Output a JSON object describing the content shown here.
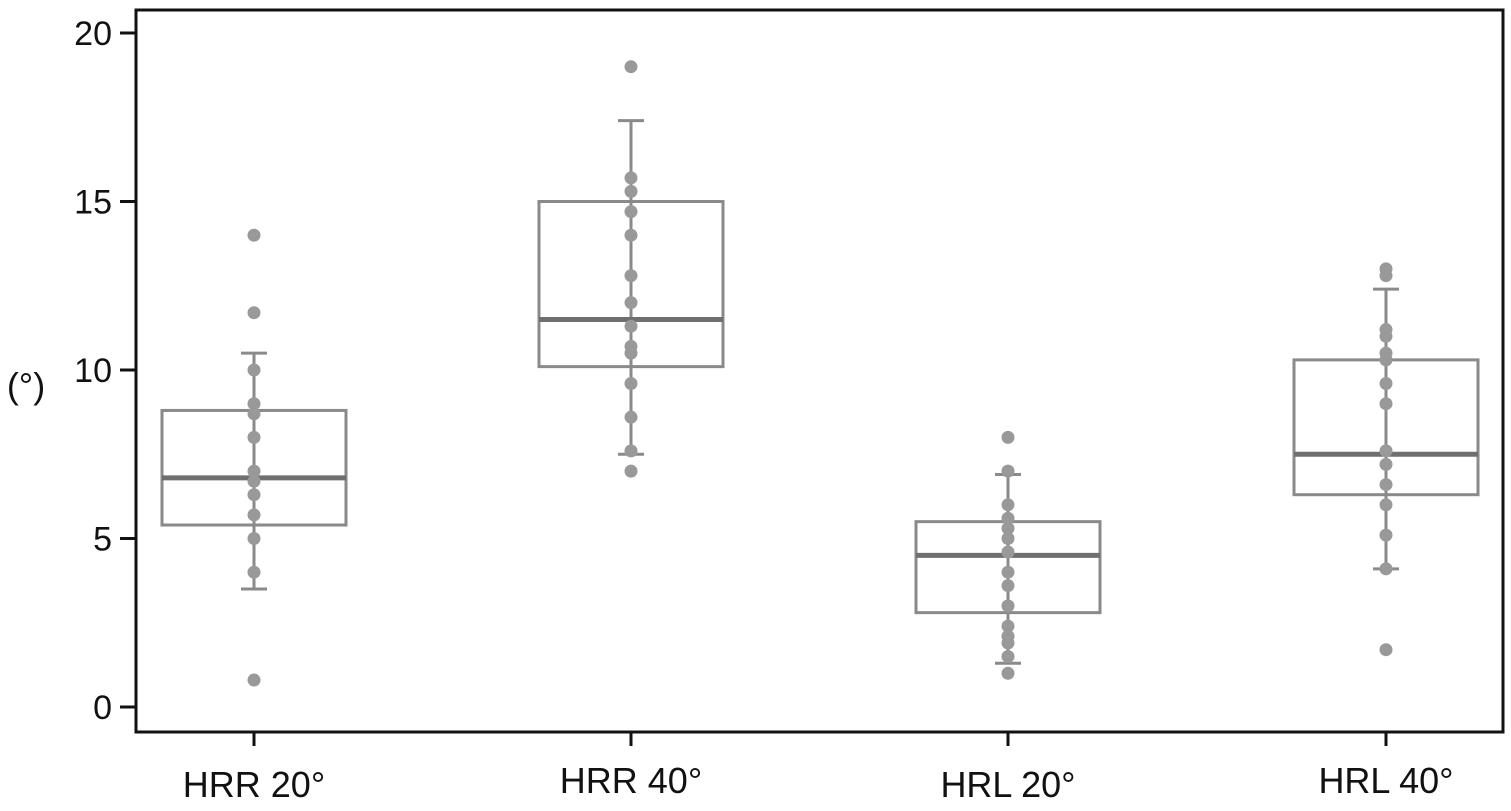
{
  "chart_data": {
    "type": "box",
    "title": "",
    "xlabel": "",
    "ylabel": "(°)",
    "ylim": [
      0,
      20
    ],
    "yticks": [
      0,
      5,
      10,
      15,
      20
    ],
    "grid": false,
    "legend": "none",
    "categories": [
      "HRR 20°",
      "HRR 40°",
      "HRL 20°",
      "HRL 40°"
    ],
    "colors": {
      "frame": "#111111",
      "box": "#8a8a8a",
      "median": "#6f6f6f",
      "point": "#999999"
    },
    "boxes": [
      {
        "q1": 5.4,
        "median": 6.8,
        "q3": 8.8,
        "whisker_low": 3.5,
        "whisker_high": 10.5,
        "points": [
          14.0,
          11.7,
          10.0,
          9.0,
          8.7,
          8.0,
          7.0,
          6.7,
          6.3,
          5.7,
          5.0,
          4.0,
          0.8
        ]
      },
      {
        "q1": 10.1,
        "median": 11.5,
        "q3": 15.0,
        "whisker_low": 7.5,
        "whisker_high": 17.4,
        "points": [
          19.0,
          15.7,
          15.3,
          14.7,
          14.0,
          12.8,
          12.0,
          11.3,
          10.7,
          10.5,
          9.6,
          8.6,
          7.6,
          7.0
        ]
      },
      {
        "q1": 2.8,
        "median": 4.5,
        "q3": 5.5,
        "whisker_low": 1.3,
        "whisker_high": 6.9,
        "points": [
          8.0,
          7.0,
          6.0,
          5.6,
          5.3,
          5.0,
          4.6,
          4.0,
          3.6,
          3.0,
          2.4,
          2.1,
          1.9,
          1.5,
          1.0
        ]
      },
      {
        "q1": 6.3,
        "median": 7.5,
        "q3": 10.3,
        "whisker_low": 4.1,
        "whisker_high": 12.4,
        "points": [
          13.0,
          12.8,
          11.2,
          11.0,
          10.5,
          10.3,
          9.6,
          9.0,
          7.6,
          7.2,
          6.6,
          6.0,
          5.1,
          4.1,
          1.7
        ]
      }
    ]
  }
}
